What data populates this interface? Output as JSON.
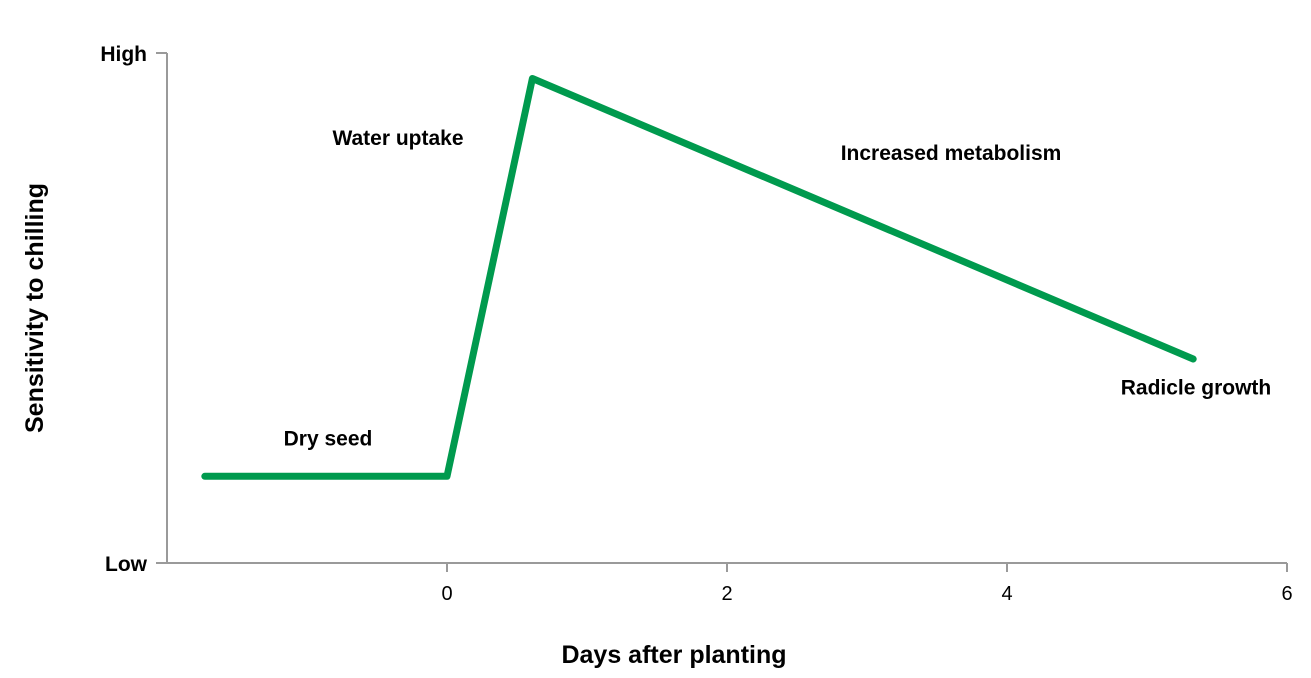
{
  "chart_data": {
    "type": "line",
    "title": "",
    "xlabel": "Days after planting",
    "ylabel": "Sensitivity to chilling",
    "xlim": [
      -2,
      6
    ],
    "ylim": [
      0,
      1
    ],
    "x_ticks": [
      0,
      2,
      4,
      6
    ],
    "x_tick_labels": [
      "0",
      "2",
      "4",
      "6"
    ],
    "y_ticks": [
      0,
      1
    ],
    "y_tick_labels": [
      "Low",
      "High"
    ],
    "grid": false,
    "line_color": "#009a4e",
    "axis_color": "#9a9a9a",
    "series": [
      {
        "x": [
          -1.73,
          0,
          0.61,
          5.33
        ],
        "y": [
          0.17,
          0.17,
          0.95,
          0.4
        ]
      }
    ],
    "annotations": [
      {
        "text": "Dry seed",
        "x": -0.85,
        "y": 0.23
      },
      {
        "text": "Water uptake",
        "x": -0.35,
        "y": 0.82
      },
      {
        "text": "Increased metabolism",
        "x": 3.6,
        "y": 0.79
      },
      {
        "text": "Radicle growth",
        "x": 5.35,
        "y": 0.33
      }
    ]
  }
}
